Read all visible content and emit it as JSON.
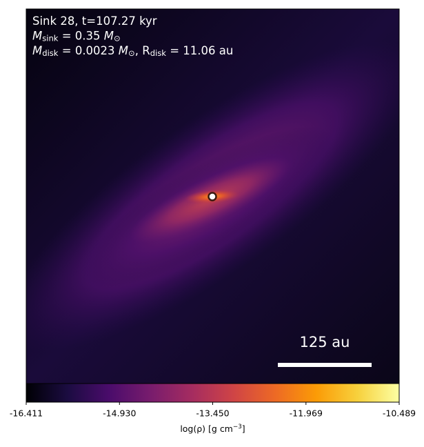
{
  "chart_data": {
    "type": "heatmap",
    "annotations": [
      [
        {
          "t": "Sink 28, t=107.27 kyr"
        }
      ],
      [
        {
          "t": "M"
        },
        {
          "sub": "sink"
        },
        {
          "t": " = 0.35 "
        },
        {
          "t": "M"
        },
        {
          "sub": "⊙"
        }
      ],
      [
        {
          "t": "M"
        },
        {
          "sub": "disk"
        },
        {
          "t": " = 0.0023 "
        },
        {
          "t": "M"
        },
        {
          "sub": "⊙"
        },
        {
          "t": ", R"
        },
        {
          "sub": "disk"
        },
        {
          "t": " = 11.06 au"
        }
      ]
    ],
    "scalebar": "125 au",
    "colorbar": {
      "colormap": "inferno",
      "clim": [
        -16.411,
        -10.489
      ],
      "ticks": [
        -16.411,
        {
          "value": -14.93,
          "label": "-14.930"
        },
        {
          "value": -13.45,
          "label": "-13.450"
        },
        -11.969,
        -10.489
      ],
      "label": [
        {
          "t": "log(ρ) [g cm"
        },
        {
          "sup": "−3"
        },
        {
          "t": "]"
        }
      ]
    }
  }
}
